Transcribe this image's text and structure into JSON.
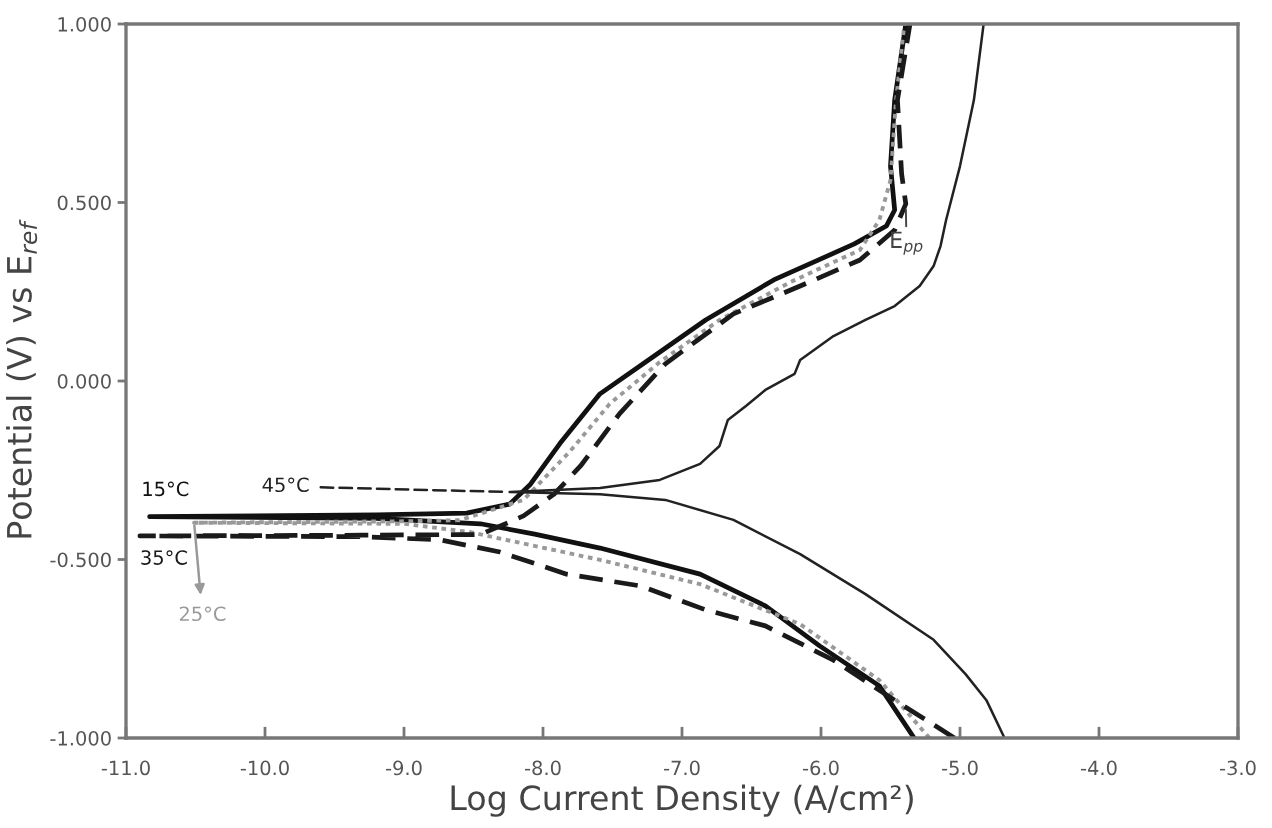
{
  "chart_data": {
    "type": "line",
    "xlabel": "Log Current Density (A/cm²)",
    "ylabel": "Potential (V) vs E$_{ref}$",
    "xlim": [
      -11,
      -3
    ],
    "ylim": [
      -1,
      1
    ],
    "xticks": [
      {
        "value": -11,
        "label": "-11.0"
      },
      {
        "value": -10,
        "label": "-10.0"
      },
      {
        "value": -9,
        "label": "-9.0"
      },
      {
        "value": -8,
        "label": "-8.0"
      },
      {
        "value": -7,
        "label": "-7.0"
      },
      {
        "value": -6,
        "label": "-6.0"
      },
      {
        "value": -5,
        "label": "-5.0"
      },
      {
        "value": -4,
        "label": "-4.0"
      },
      {
        "value": -3,
        "label": "-3.0"
      }
    ],
    "yticks": [
      {
        "value": -1,
        "label": "-1.000"
      },
      {
        "value": -0.5,
        "label": "-0.500"
      },
      {
        "value": 0,
        "label": "0.000"
      },
      {
        "value": 0.5,
        "label": "0.500"
      },
      {
        "value": 1,
        "label": "1.000"
      }
    ],
    "series": [
      {
        "name": "15°C",
        "color": "#111111",
        "line_style": "solid",
        "x": [
          -5.33,
          -5.58,
          -6.01,
          -6.4,
          -6.87,
          -7.59,
          -8.06,
          -8.45,
          -9.2,
          -10.83,
          -9.2,
          -8.55,
          -8.24,
          -8.09,
          -7.88,
          -7.59,
          -7.2,
          -6.83,
          -6.34,
          -5.76,
          -5.53,
          -5.47,
          -5.5,
          -5.47,
          -5.39
        ],
        "values": [
          -1.0,
          -0.854,
          -0.742,
          -0.63,
          -0.541,
          -0.468,
          -0.429,
          -0.4,
          -0.385,
          -0.38,
          -0.375,
          -0.37,
          -0.345,
          -0.289,
          -0.176,
          -0.036,
          0.07,
          0.171,
          0.283,
          0.384,
          0.434,
          0.479,
          0.602,
          0.787,
          1.0
        ]
      },
      {
        "name": "25°C",
        "color": "#999999",
        "line_style": "dotted",
        "x": [
          -5.22,
          -5.58,
          -6.15,
          -6.87,
          -7.59,
          -8.53,
          -9.0,
          -10.51,
          -9.0,
          -8.6,
          -8.14,
          -7.81,
          -7.52,
          -7.16,
          -6.73,
          -6.22,
          -5.72,
          -5.58,
          -5.5,
          -5.46,
          -5.4
        ],
        "values": [
          -1.0,
          -0.838,
          -0.681,
          -0.569,
          -0.501,
          -0.423,
          -0.4,
          -0.397,
          -0.393,
          -0.39,
          -0.333,
          -0.199,
          -0.064,
          0.053,
          0.171,
          0.277,
          0.367,
          0.451,
          0.563,
          0.787,
          1.0
        ]
      },
      {
        "name": "35°C",
        "color": "#1a1a1a",
        "line_style": "dashed",
        "x": [
          -5.04,
          -5.47,
          -5.91,
          -6.4,
          -6.83,
          -7.3,
          -7.83,
          -8.31,
          -8.74,
          -9.3,
          -10.9,
          -9.3,
          -8.45,
          -8.14,
          -7.92,
          -7.73,
          -7.45,
          -7.12,
          -6.63,
          -6.15,
          -5.72,
          -5.47,
          -5.39,
          -5.42,
          -5.45,
          -5.36
        ],
        "values": [
          -1.0,
          -0.894,
          -0.782,
          -0.686,
          -0.641,
          -0.574,
          -0.541,
          -0.479,
          -0.445,
          -0.436,
          -0.434,
          -0.432,
          -0.43,
          -0.378,
          -0.317,
          -0.238,
          -0.092,
          0.048,
          0.188,
          0.266,
          0.339,
          0.423,
          0.496,
          0.58,
          0.787,
          1.0
        ]
      },
      {
        "name": "45°C",
        "color": "#222222",
        "line_style": "solid",
        "x": [
          -4.68,
          -4.81,
          -4.96,
          -5.19,
          -5.68,
          -6.15,
          -6.63,
          -7.12,
          -7.59,
          -8.24,
          -7.59,
          -7.16,
          -6.87,
          -6.73,
          -6.67,
          -6.54,
          -6.4,
          -6.19,
          -6.15,
          -6.01,
          -5.91,
          -5.68,
          -5.47,
          -5.29,
          -5.19,
          -5.14,
          -5.1,
          -5.0,
          -4.9,
          -4.83
        ],
        "values": [
          -1.0,
          -0.894,
          -0.821,
          -0.725,
          -0.597,
          -0.485,
          -0.389,
          -0.333,
          -0.317,
          -0.311,
          -0.3,
          -0.277,
          -0.232,
          -0.182,
          -0.109,
          -0.07,
          -0.025,
          0.02,
          0.059,
          0.098,
          0.126,
          0.171,
          0.21,
          0.266,
          0.322,
          0.378,
          0.451,
          0.602,
          0.787,
          1.0
        ]
      }
    ],
    "annotations": [
      {
        "text": "E$_{pp}$",
        "x": -5.39,
        "y": 0.496
      }
    ]
  }
}
